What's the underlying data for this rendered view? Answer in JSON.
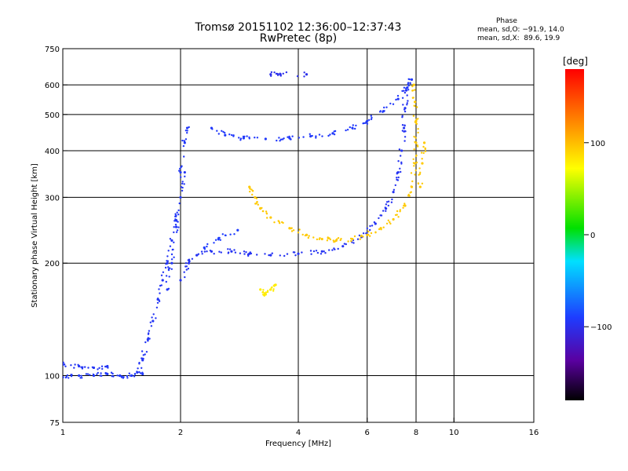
{
  "chart_data": {
    "type": "scatter",
    "title": "Tromsø 20151102 12:36:00–12:37:43",
    "subtitle": "RwPretec (8p)",
    "xlabel": "Frequency [MHz]",
    "ylabel": "Stationary phase Virtual Height [km]",
    "x_scale": "log",
    "y_scale": "log",
    "xlim": [
      1,
      16
    ],
    "ylim": [
      75,
      750
    ],
    "x_ticks": [
      1,
      2,
      4,
      6,
      8,
      10,
      16
    ],
    "y_ticks": [
      75,
      100,
      200,
      300,
      400,
      500,
      600,
      750
    ],
    "x_tick_labels": [
      "1",
      "2",
      "4",
      "6",
      "8",
      "10",
      "16"
    ],
    "y_tick_labels": [
      "75",
      "100",
      "200",
      "300",
      "400",
      "500",
      "600",
      "750"
    ],
    "x_grid": [
      2,
      4,
      6,
      8,
      10
    ],
    "y_grid": [
      100,
      200,
      300,
      400,
      500,
      600
    ],
    "grid": true,
    "colorbar": {
      "label": "[deg]",
      "range": [
        -180,
        180
      ],
      "ticks": [
        100,
        0,
        -100
      ],
      "tick_labels": [
        "100",
        "0",
        "−100"
      ]
    },
    "stats": {
      "title": "Phase",
      "o_mode": "mean, sd,O: −91.9, 14.0",
      "x_mode": "mean, sd,X:  89.6, 19.9"
    },
    "traces": [
      {
        "mode": "O",
        "phase_deg": -92,
        "points": [
          [
            1.0,
            99
          ],
          [
            1.1,
            100
          ],
          [
            1.2,
            100
          ],
          [
            1.3,
            101
          ],
          [
            1.4,
            100
          ],
          [
            1.5,
            100
          ],
          [
            1.6,
            101
          ]
        ]
      },
      {
        "mode": "O",
        "phase_deg": -95,
        "points": [
          [
            1.0,
            107
          ],
          [
            1.1,
            106
          ],
          [
            1.2,
            105
          ],
          [
            1.3,
            106
          ]
        ]
      },
      {
        "mode": "O",
        "phase_deg": -95,
        "points": [
          [
            1.55,
            102
          ],
          [
            1.6,
            110
          ],
          [
            1.65,
            125
          ],
          [
            1.7,
            140
          ],
          [
            1.75,
            160
          ],
          [
            1.8,
            180
          ],
          [
            1.85,
            200
          ],
          [
            1.9,
            230
          ],
          [
            1.95,
            260
          ],
          [
            2.0,
            300
          ],
          [
            2.05,
            350
          ]
        ]
      },
      {
        "mode": "O",
        "phase_deg": -93,
        "points": [
          [
            1.85,
            170
          ],
          [
            1.9,
            200
          ],
          [
            1.95,
            250
          ],
          [
            2.0,
            350
          ],
          [
            2.05,
            420
          ],
          [
            2.08,
            460
          ]
        ]
      },
      {
        "mode": "O",
        "phase_deg": -96,
        "points": [
          [
            2.0,
            180
          ],
          [
            2.1,
            200
          ],
          [
            2.2,
            210
          ],
          [
            2.4,
            215
          ],
          [
            2.7,
            215
          ],
          [
            3.0,
            212
          ],
          [
            3.4,
            210
          ],
          [
            4.0,
            212
          ],
          [
            4.6,
            215
          ],
          [
            5.2,
            222
          ],
          [
            5.8,
            235
          ],
          [
            6.3,
            255
          ],
          [
            6.7,
            280
          ],
          [
            7.0,
            310
          ],
          [
            7.2,
            350
          ],
          [
            7.35,
            400
          ],
          [
            7.45,
            460
          ],
          [
            7.5,
            520
          ],
          [
            7.55,
            580
          ]
        ]
      },
      {
        "mode": "O",
        "phase_deg": -90,
        "points": [
          [
            2.3,
            220
          ],
          [
            2.5,
            232
          ],
          [
            2.8,
            245
          ]
        ]
      },
      {
        "mode": "O",
        "phase_deg": -92,
        "points": [
          [
            2.4,
            460
          ],
          [
            2.6,
            440
          ],
          [
            2.9,
            432
          ],
          [
            3.3,
            430
          ],
          [
            3.8,
            432
          ],
          [
            4.3,
            437
          ],
          [
            4.9,
            445
          ],
          [
            5.5,
            460
          ],
          [
            6.0,
            480
          ],
          [
            6.6,
            510
          ],
          [
            7.2,
            550
          ],
          [
            7.6,
            590
          ],
          [
            7.8,
            620
          ]
        ]
      },
      {
        "mode": "O",
        "phase_deg": -100,
        "points": [
          [
            3.4,
            640
          ],
          [
            3.6,
            640
          ],
          [
            4.2,
            640
          ]
        ]
      },
      {
        "mode": "X",
        "phase_deg": 95,
        "points": [
          [
            3.0,
            320
          ],
          [
            3.1,
            300
          ],
          [
            3.2,
            280
          ],
          [
            3.4,
            265
          ],
          [
            3.8,
            248
          ],
          [
            4.2,
            238
          ],
          [
            4.6,
            232
          ],
          [
            5.0,
            230
          ],
          [
            5.5,
            232
          ],
          [
            6.0,
            238
          ],
          [
            6.5,
            248
          ],
          [
            7.0,
            262
          ],
          [
            7.5,
            285
          ],
          [
            7.8,
            320
          ],
          [
            7.95,
            370
          ],
          [
            8.0,
            420
          ],
          [
            8.0,
            480
          ],
          [
            7.95,
            540
          ],
          [
            7.9,
            600
          ]
        ]
      },
      {
        "mode": "X",
        "phase_deg": 80,
        "points": [
          [
            3.2,
            170
          ],
          [
            3.3,
            165
          ],
          [
            3.4,
            170
          ],
          [
            3.5,
            175
          ]
        ]
      },
      {
        "mode": "X",
        "phase_deg": 95,
        "points": [
          [
            8.2,
            320
          ],
          [
            8.3,
            370
          ],
          [
            8.4,
            420
          ]
        ]
      }
    ]
  },
  "colors": {
    "o_mode": "#1e3cff",
    "x_mode": "#e8e020",
    "grid": "#000000",
    "background": "#ffffff"
  }
}
